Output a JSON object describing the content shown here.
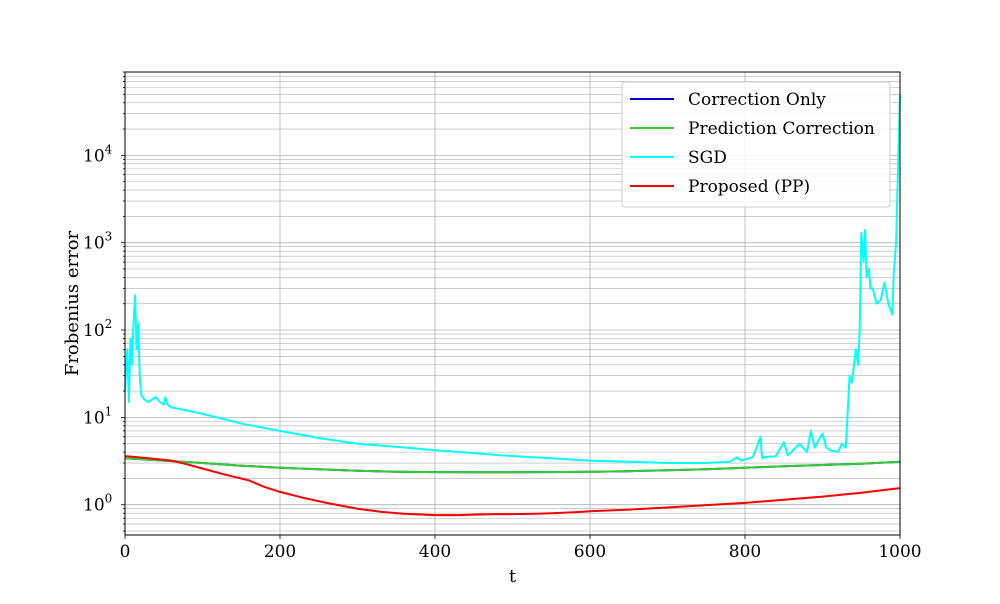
{
  "chart_data": {
    "type": "line",
    "xlabel": "t",
    "ylabel": "Frobenius error",
    "xlim": [
      0,
      1000
    ],
    "ylim": [
      0.45,
      90000
    ],
    "yscale": "log",
    "grid": true,
    "legend_position": "top-right",
    "x_ticks": [
      0,
      200,
      400,
      600,
      800,
      1000
    ],
    "y_ticks": [
      {
        "value": 1,
        "base": "10",
        "exp": "0"
      },
      {
        "value": 10,
        "base": "10",
        "exp": "1"
      },
      {
        "value": 100,
        "base": "10",
        "exp": "2"
      },
      {
        "value": 1000,
        "base": "10",
        "exp": "3"
      },
      {
        "value": 10000,
        "base": "10",
        "exp": "4"
      }
    ],
    "series": [
      {
        "name": "Correction Only",
        "color": "#0000cc",
        "x": [
          0,
          50,
          100,
          150,
          200,
          250,
          300,
          350,
          400,
          450,
          500,
          550,
          600,
          650,
          700,
          750,
          800,
          850,
          900,
          950,
          1000
        ],
        "values": [
          3.4,
          3.2,
          3.0,
          2.8,
          2.65,
          2.55,
          2.45,
          2.38,
          2.36,
          2.35,
          2.35,
          2.36,
          2.38,
          2.42,
          2.48,
          2.55,
          2.65,
          2.75,
          2.85,
          2.95,
          3.1
        ]
      },
      {
        "name": "Prediction Correction",
        "color": "#33cc33",
        "x": [
          0,
          50,
          100,
          150,
          200,
          250,
          300,
          350,
          400,
          450,
          500,
          550,
          600,
          650,
          700,
          750,
          800,
          850,
          900,
          950,
          1000
        ],
        "values": [
          3.4,
          3.2,
          3.0,
          2.8,
          2.65,
          2.55,
          2.45,
          2.38,
          2.36,
          2.35,
          2.35,
          2.36,
          2.38,
          2.42,
          2.48,
          2.55,
          2.65,
          2.75,
          2.85,
          2.95,
          3.1
        ]
      },
      {
        "name": "SGD",
        "color": "#00ffff",
        "x": [
          0,
          3,
          5,
          7,
          9,
          11,
          13,
          15,
          17,
          19,
          21,
          25,
          30,
          35,
          40,
          45,
          50,
          52,
          55,
          60,
          80,
          100,
          150,
          200,
          250,
          300,
          350,
          400,
          450,
          500,
          550,
          600,
          650,
          700,
          750,
          780,
          790,
          795,
          800,
          810,
          820,
          822,
          825,
          840,
          850,
          855,
          860,
          870,
          880,
          885,
          890,
          895,
          900,
          905,
          910,
          920,
          925,
          930,
          935,
          938,
          940,
          943,
          946,
          948,
          950,
          953,
          955,
          957,
          960,
          962,
          965,
          967,
          970,
          975,
          980,
          985,
          990,
          992,
          995,
          997,
          1000
        ],
        "values": [
          20,
          60,
          15,
          80,
          40,
          120,
          250,
          60,
          120,
          30,
          18,
          16,
          15,
          16,
          17,
          15,
          14,
          17,
          14,
          13,
          12,
          11,
          8.5,
          7,
          5.8,
          5.0,
          4.6,
          4.2,
          3.9,
          3.6,
          3.4,
          3.2,
          3.1,
          3.0,
          3.0,
          3.1,
          3.5,
          3.2,
          3.3,
          3.5,
          6.0,
          3.4,
          3.5,
          3.6,
          5.2,
          3.7,
          4.0,
          5.0,
          4.0,
          7.0,
          4.5,
          5.5,
          6.5,
          4.5,
          4.2,
          4.0,
          5.0,
          4.5,
          30,
          25,
          35,
          60,
          40,
          100,
          1300,
          600,
          1400,
          400,
          500,
          300,
          300,
          250,
          200,
          220,
          350,
          200,
          150,
          450,
          1000,
          5000,
          50000
        ]
      },
      {
        "name": "Proposed (PP)",
        "color": "#ff0000",
        "x": [
          0,
          30,
          60,
          80,
          100,
          130,
          160,
          180,
          200,
          230,
          260,
          300,
          330,
          360,
          400,
          430,
          450,
          480,
          500,
          530,
          550,
          580,
          600,
          650,
          700,
          750,
          800,
          850,
          900,
          950,
          1000
        ],
        "values": [
          3.6,
          3.4,
          3.2,
          2.9,
          2.6,
          2.2,
          1.9,
          1.6,
          1.4,
          1.2,
          1.05,
          0.9,
          0.83,
          0.79,
          0.76,
          0.76,
          0.77,
          0.78,
          0.78,
          0.79,
          0.8,
          0.82,
          0.84,
          0.88,
          0.93,
          0.99,
          1.05,
          1.14,
          1.24,
          1.37,
          1.55
        ]
      }
    ]
  }
}
